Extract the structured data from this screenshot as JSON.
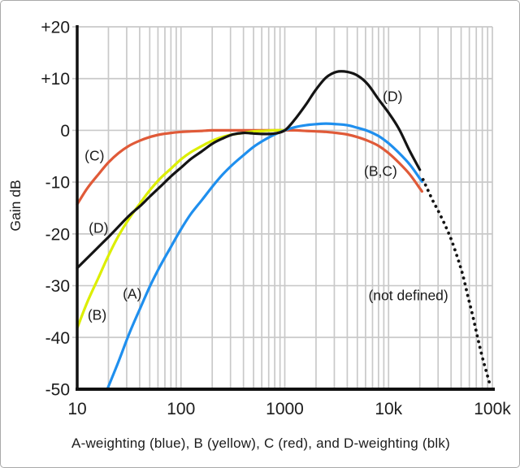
{
  "figure": {
    "caption": "A-weighting (blue), B (yellow), C (red), and D-weighting (blk)"
  },
  "chart_data": {
    "type": "line",
    "title": "",
    "xlabel": "",
    "ylabel": "Gain dB",
    "x_scale": "log",
    "xlim": [
      10,
      100000
    ],
    "ylim": [
      -50,
      20
    ],
    "grid": true,
    "grid_color": "#c9c9c9",
    "axis_color": "#111111",
    "text_color": "#1c1c1c",
    "x_ticks": [
      {
        "value": 10,
        "label": "10"
      },
      {
        "value": 100,
        "label": "100"
      },
      {
        "value": 1000,
        "label": "1000"
      },
      {
        "value": 10000,
        "label": "10k"
      },
      {
        "value": 100000,
        "label": "100k"
      }
    ],
    "y_ticks": [
      {
        "value": 20,
        "label": "+20"
      },
      {
        "value": 10,
        "label": "+10"
      },
      {
        "value": 0,
        "label": "0"
      },
      {
        "value": -10,
        "label": "-10"
      },
      {
        "value": -20,
        "label": "-20"
      },
      {
        "value": -30,
        "label": "-30"
      },
      {
        "value": -40,
        "label": "-40"
      },
      {
        "value": -50,
        "label": "-50"
      }
    ],
    "series": [
      {
        "name": "C-weighting",
        "color": "#e05a38",
        "style": "solid",
        "points": [
          [
            10,
            -14.3
          ],
          [
            12.5,
            -11.2
          ],
          [
            16,
            -8.5
          ],
          [
            20,
            -6.2
          ],
          [
            25,
            -4.4
          ],
          [
            31.5,
            -3.0
          ],
          [
            40,
            -2.0
          ],
          [
            50,
            -1.3
          ],
          [
            63,
            -0.8
          ],
          [
            80,
            -0.5
          ],
          [
            100,
            -0.3
          ],
          [
            125,
            -0.2
          ],
          [
            160,
            -0.1
          ],
          [
            200,
            0
          ],
          [
            315,
            0
          ],
          [
            500,
            0
          ],
          [
            800,
            0
          ],
          [
            1000,
            0
          ],
          [
            1250,
            0
          ],
          [
            1600,
            -0.1
          ],
          [
            2000,
            -0.2
          ],
          [
            2500,
            -0.3
          ],
          [
            3150,
            -0.5
          ],
          [
            4000,
            -0.8
          ],
          [
            5000,
            -1.3
          ],
          [
            6300,
            -2.0
          ],
          [
            8000,
            -3.0
          ],
          [
            10000,
            -4.4
          ],
          [
            12500,
            -6.2
          ],
          [
            16000,
            -8.5
          ],
          [
            20000,
            -11.2
          ],
          [
            21000,
            -11.8
          ]
        ]
      },
      {
        "name": "B-weighting",
        "color": "#dcee00",
        "style": "solid",
        "points": [
          [
            10,
            -38.2
          ],
          [
            12.5,
            -33.2
          ],
          [
            16,
            -28.5
          ],
          [
            20,
            -24.2
          ],
          [
            25,
            -20.4
          ],
          [
            31.5,
            -17.1
          ],
          [
            40,
            -14.2
          ],
          [
            50,
            -11.6
          ],
          [
            63,
            -9.3
          ],
          [
            80,
            -7.4
          ],
          [
            100,
            -5.6
          ],
          [
            125,
            -4.2
          ],
          [
            160,
            -3.0
          ],
          [
            200,
            -2.0
          ],
          [
            250,
            -1.3
          ],
          [
            315,
            -0.8
          ],
          [
            400,
            -0.5
          ],
          [
            500,
            -0.2
          ],
          [
            630,
            -0.1
          ],
          [
            800,
            0
          ],
          [
            1000,
            0
          ]
        ]
      },
      {
        "name": "A-weighting",
        "color": "#1f8fee",
        "style": "solid",
        "points": [
          [
            19.5,
            -50
          ],
          [
            25,
            -44.7
          ],
          [
            31.5,
            -39.4
          ],
          [
            40,
            -34.6
          ],
          [
            50,
            -30.2
          ],
          [
            63,
            -26.2
          ],
          [
            80,
            -22.5
          ],
          [
            100,
            -19.1
          ],
          [
            125,
            -16.1
          ],
          [
            160,
            -13.4
          ],
          [
            200,
            -10.9
          ],
          [
            250,
            -8.6
          ],
          [
            315,
            -6.6
          ],
          [
            400,
            -4.8
          ],
          [
            500,
            -3.2
          ],
          [
            630,
            -1.9
          ],
          [
            800,
            -0.8
          ],
          [
            1000,
            0
          ],
          [
            1250,
            0.6
          ],
          [
            1600,
            1.0
          ],
          [
            2000,
            1.2
          ],
          [
            2500,
            1.3
          ],
          [
            3150,
            1.2
          ],
          [
            4000,
            1.0
          ],
          [
            5000,
            0.5
          ],
          [
            6300,
            -0.1
          ],
          [
            8000,
            -1.1
          ],
          [
            10000,
            -2.5
          ],
          [
            12500,
            -4.3
          ],
          [
            16000,
            -6.6
          ],
          [
            20000,
            -9.3
          ],
          [
            21000,
            -9.9
          ]
        ]
      },
      {
        "name": "D-weighting",
        "color": "#141414",
        "style": "solid",
        "points": [
          [
            10,
            -26.6
          ],
          [
            20,
            -20.6
          ],
          [
            31.5,
            -16.5
          ],
          [
            40,
            -14.7
          ],
          [
            50,
            -12.8
          ],
          [
            63,
            -10.9
          ],
          [
            80,
            -8.9
          ],
          [
            100,
            -7.2
          ],
          [
            125,
            -5.5
          ],
          [
            160,
            -4.0
          ],
          [
            200,
            -2.6
          ],
          [
            250,
            -1.6
          ],
          [
            315,
            -0.8
          ],
          [
            400,
            -0.5
          ],
          [
            500,
            -0.6
          ],
          [
            630,
            -0.7
          ],
          [
            800,
            -0.6
          ],
          [
            1000,
            0
          ],
          [
            1250,
            2.1
          ],
          [
            1600,
            5.0
          ],
          [
            2000,
            7.9
          ],
          [
            2500,
            10.2
          ],
          [
            3150,
            11.3
          ],
          [
            4000,
            11.3
          ],
          [
            5000,
            10.6
          ],
          [
            6300,
            8.9
          ],
          [
            8000,
            6.0
          ],
          [
            10000,
            3.4
          ],
          [
            12500,
            0.4
          ],
          [
            16000,
            -4.0
          ],
          [
            20000,
            -7.6
          ]
        ]
      },
      {
        "name": "D-weighting-extension-not-defined",
        "color": "#141414",
        "style": "dotted",
        "points": [
          [
            21500,
            -9.5
          ],
          [
            24000,
            -11.6
          ],
          [
            27000,
            -13.8
          ],
          [
            30000,
            -15.5
          ],
          [
            35000,
            -18.3
          ],
          [
            40000,
            -21.0
          ],
          [
            46000,
            -24.5
          ],
          [
            52000,
            -28.0
          ],
          [
            58000,
            -32.0
          ],
          [
            65000,
            -36.0
          ],
          [
            72000,
            -40.0
          ],
          [
            80000,
            -43.8
          ],
          [
            88000,
            -46.8
          ],
          [
            95000,
            -49.2
          ]
        ]
      }
    ],
    "annotations": [
      {
        "text": "(C)",
        "f": 11.8,
        "gain": -5.8
      },
      {
        "text": "(D)",
        "f": 12.9,
        "gain": -19.8
      },
      {
        "text": "(B)",
        "f": 12.6,
        "gain": -36.6
      },
      {
        "text": "(A)",
        "f": 27.5,
        "gain": -32.5
      },
      {
        "text": "(D)",
        "f": 8800,
        "gain": 5.6
      },
      {
        "text": "(B,C)",
        "f": 5800,
        "gain": -8.8
      },
      {
        "text": "(not defined)",
        "f": 6400,
        "gain": -32.8
      }
    ],
    "legend_position": "none"
  }
}
